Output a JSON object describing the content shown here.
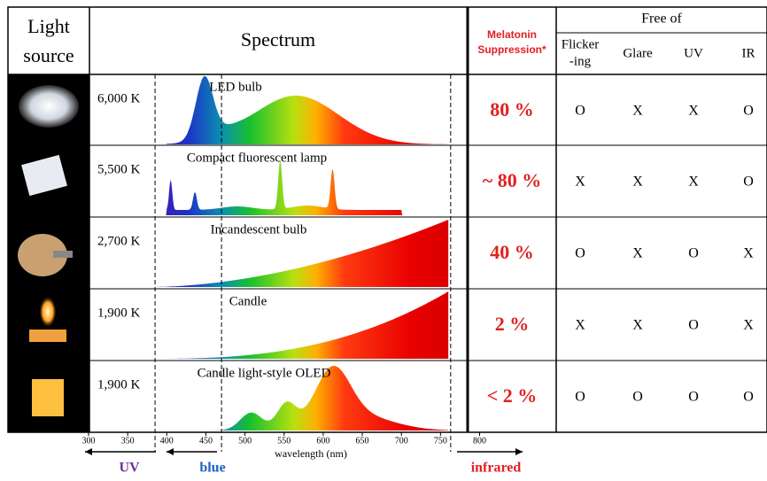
{
  "header": {
    "light_source": [
      "Light",
      "source"
    ],
    "spectrum": "Spectrum",
    "melatonin": [
      "Melatonin",
      "Suppression*"
    ],
    "free_of": "Free of",
    "free_cols": [
      [
        "Flicker",
        "-ing"
      ],
      [
        "Glare"
      ],
      [
        "UV"
      ],
      [
        "IR"
      ]
    ]
  },
  "rows": [
    {
      "temp": "6,000 K",
      "name": "LED bulb",
      "melatonin": "80 %",
      "free": [
        "O",
        "X",
        "X",
        "O"
      ]
    },
    {
      "temp": "5,500 K",
      "name": "Compact fluorescent lamp",
      "melatonin": "~ 80 %",
      "free": [
        "X",
        "X",
        "X",
        "O"
      ]
    },
    {
      "temp": "2,700 K",
      "name": "Incandescent bulb",
      "melatonin": "40 %",
      "free": [
        "O",
        "X",
        "O",
        "X"
      ]
    },
    {
      "temp": "1,900 K",
      "name": "Candle",
      "melatonin": "2 %",
      "free": [
        "X",
        "X",
        "O",
        "X"
      ]
    },
    {
      "temp": "1,900 K",
      "name": "Candle light-style OLED",
      "melatonin": "< 2 %",
      "free": [
        "O",
        "O",
        "O",
        "O"
      ]
    }
  ],
  "axis": {
    "label": "wavelength (nm)",
    "ticks": [
      300,
      350,
      400,
      450,
      500,
      550,
      600,
      650,
      700,
      750,
      800
    ]
  },
  "regions": {
    "uv": "UV",
    "blue": "blue",
    "infrared": "infrared"
  }
}
